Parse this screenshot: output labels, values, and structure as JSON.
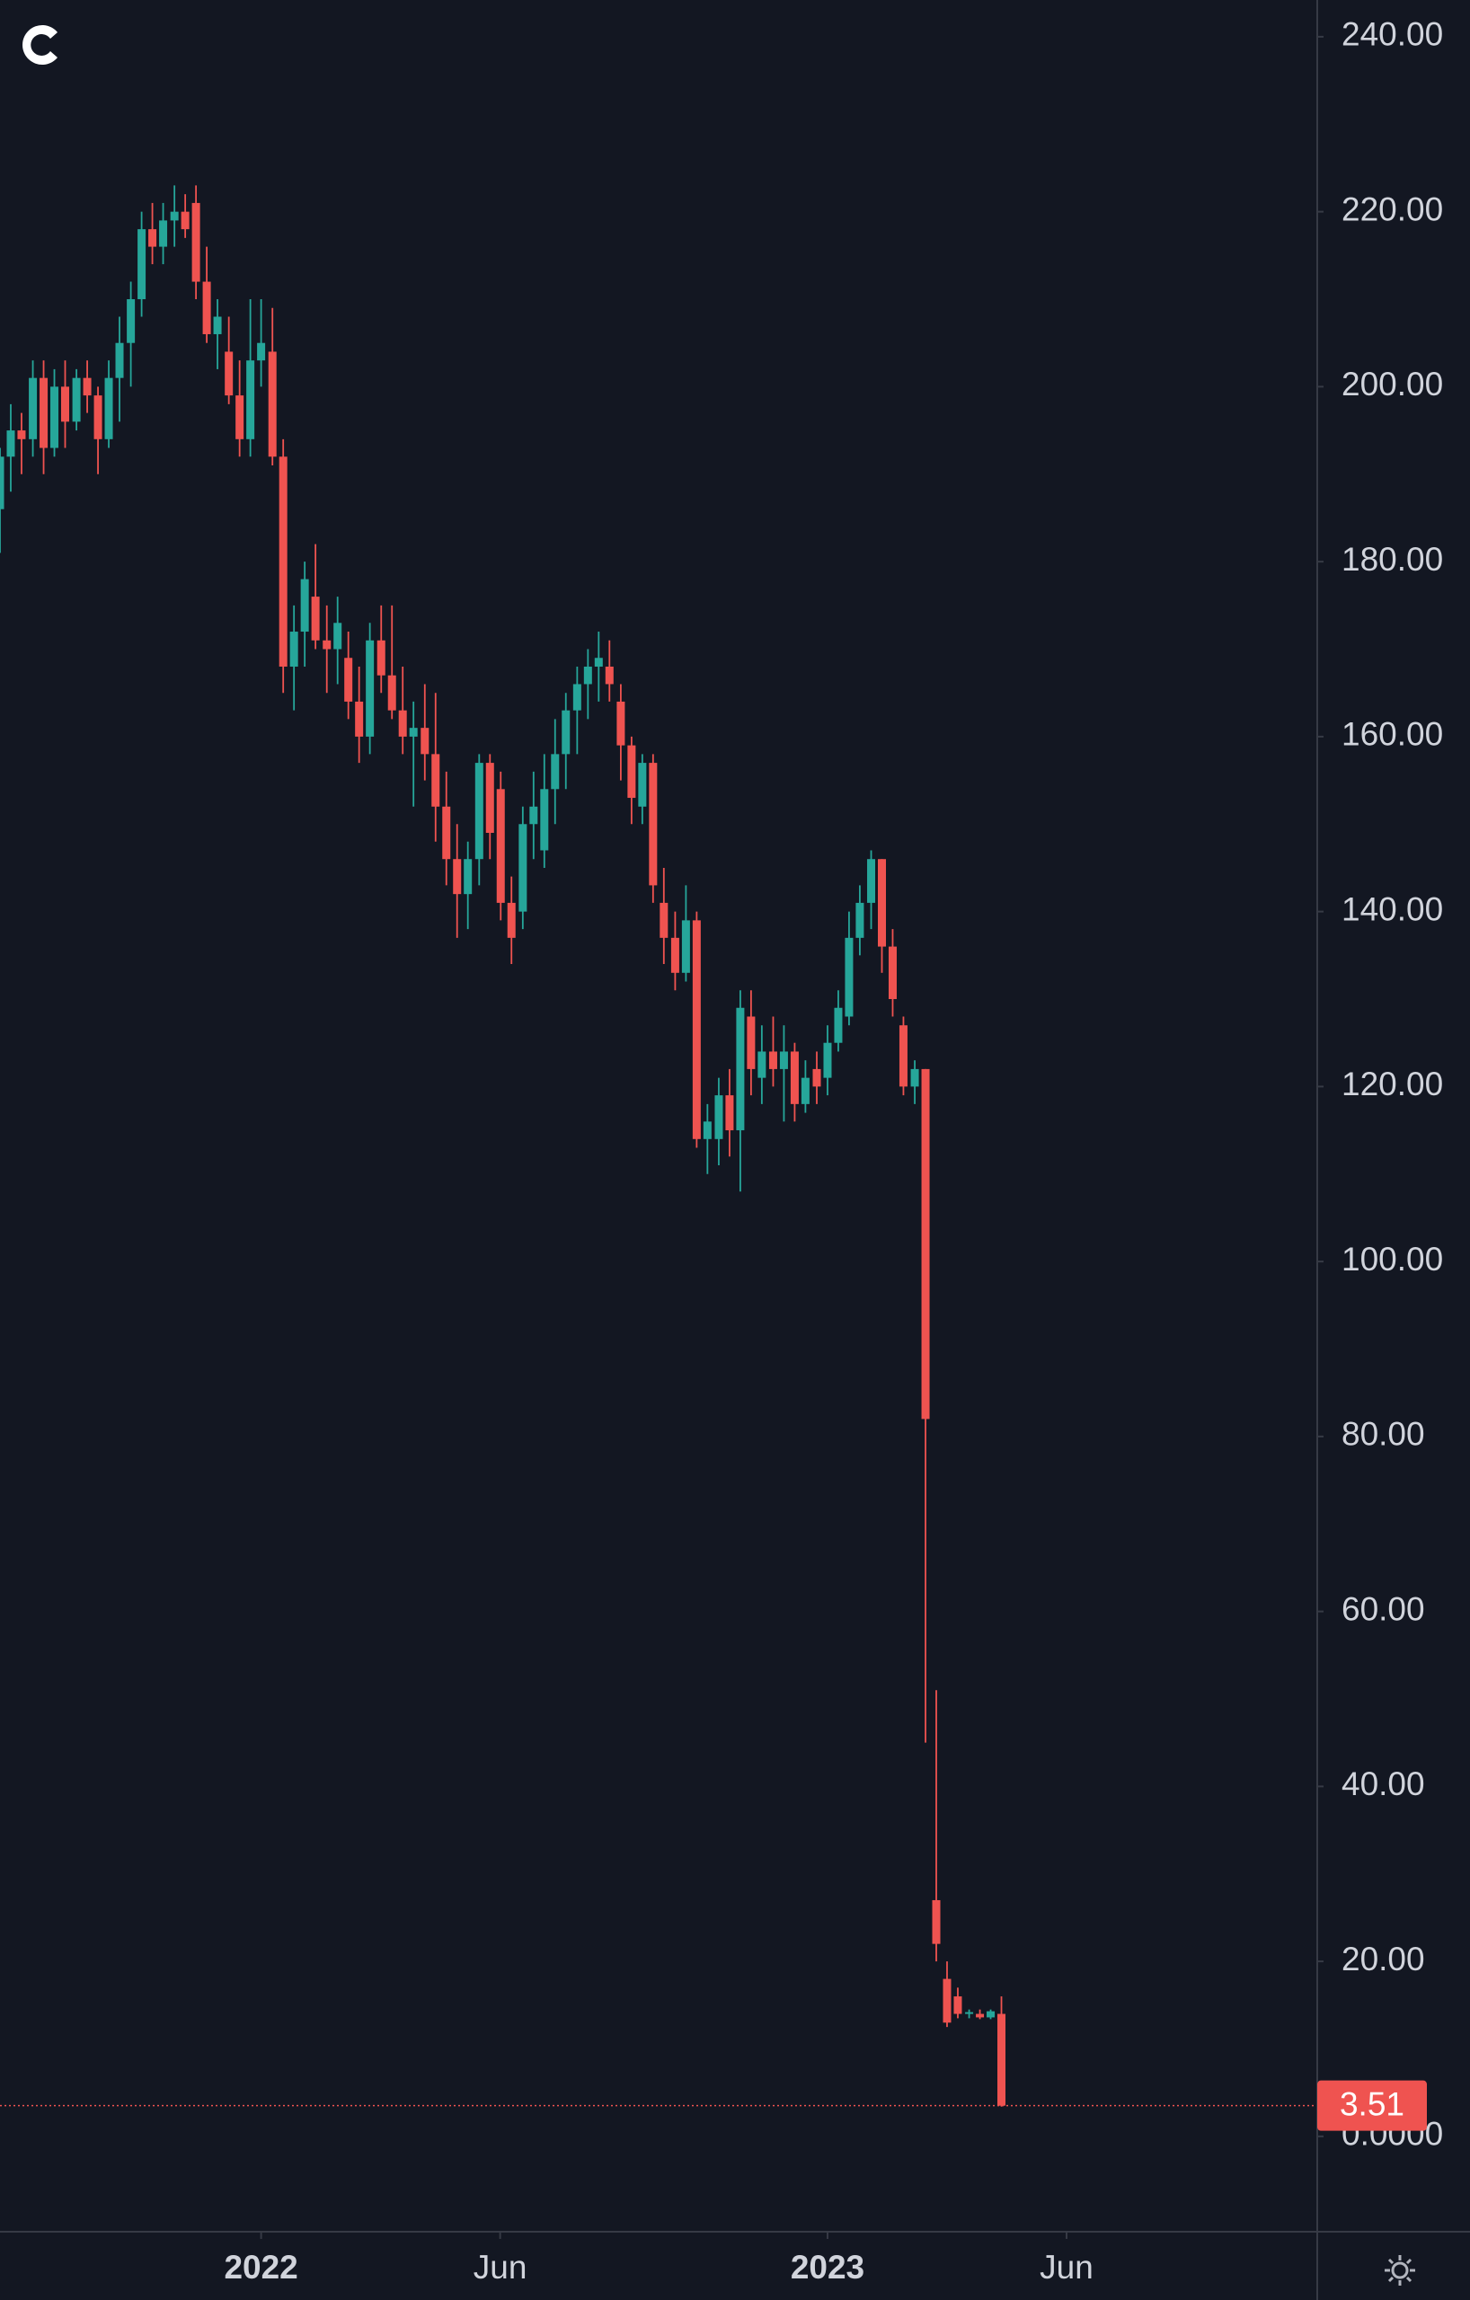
{
  "chart_data": {
    "type": "candlestick",
    "x": [
      2021.539,
      2021.558,
      2021.577,
      2021.597,
      2021.616,
      2021.635,
      2021.654,
      2021.674,
      2021.693,
      2021.712,
      2021.731,
      2021.75,
      2021.77,
      2021.789,
      2021.808,
      2021.827,
      2021.847,
      2021.866,
      2021.885,
      2021.904,
      2021.923,
      2021.943,
      2021.962,
      2021.981,
      2022.0,
      2022.02,
      2022.039,
      2022.058,
      2022.077,
      2022.096,
      2022.116,
      2022.135,
      2022.154,
      2022.173,
      2022.192,
      2022.212,
      2022.231,
      2022.25,
      2022.269,
      2022.289,
      2022.308,
      2022.327,
      2022.346,
      2022.365,
      2022.385,
      2022.404,
      2022.423,
      2022.442,
      2022.462,
      2022.481,
      2022.5,
      2022.519,
      2022.538,
      2022.558,
      2022.577,
      2022.596,
      2022.615,
      2022.635,
      2022.654,
      2022.673,
      2022.692,
      2022.711,
      2022.731,
      2022.75,
      2022.769,
      2022.788,
      2022.808,
      2022.827,
      2022.846,
      2022.865,
      2022.884,
      2022.904,
      2022.923,
      2022.942,
      2022.961,
      2022.981,
      2023.0,
      2023.019,
      2023.038,
      2023.057,
      2023.077,
      2023.096,
      2023.115,
      2023.134,
      2023.154,
      2023.173,
      2023.192,
      2023.211,
      2023.23,
      2023.25,
      2023.269,
      2023.288,
      2023.307
    ],
    "open": [
      186,
      192,
      195,
      194,
      201,
      193,
      200,
      196,
      201,
      199,
      194,
      201,
      205,
      210,
      218,
      216,
      219,
      220,
      221,
      212,
      206,
      204,
      199,
      194,
      203,
      204,
      192,
      168,
      172,
      176,
      171,
      170,
      169,
      164,
      160,
      171,
      167,
      163,
      160,
      161,
      158,
      152,
      146,
      142,
      146,
      157,
      154,
      141,
      140,
      150,
      147,
      154,
      158,
      163,
      166,
      168,
      168,
      164,
      159,
      152,
      157,
      141,
      137,
      133,
      139,
      114,
      114,
      119,
      115,
      128,
      121,
      124,
      122,
      124,
      118,
      122,
      121,
      125,
      128,
      137,
      141,
      146,
      136,
      127,
      120,
      122,
      27,
      18,
      16,
      14,
      14,
      13.6,
      14
    ],
    "high": [
      193,
      198,
      197,
      203,
      203,
      202,
      203,
      202,
      203,
      200,
      203,
      208,
      212,
      220,
      221,
      221,
      223,
      222,
      223,
      216,
      210,
      208,
      203,
      210,
      210,
      209,
      194,
      175,
      180,
      182,
      175,
      176,
      172,
      168,
      173,
      175,
      175,
      168,
      164,
      166,
      165,
      156,
      150,
      148,
      158,
      158,
      156,
      144,
      152,
      156,
      158,
      162,
      165,
      168,
      170,
      172,
      171,
      166,
      160,
      158,
      158,
      145,
      140,
      143,
      140,
      118,
      121,
      122,
      131,
      131,
      127,
      128,
      127,
      125,
      123,
      124,
      127,
      131,
      140,
      143,
      147,
      146,
      138,
      128,
      123,
      122,
      51,
      20,
      17,
      14.5,
      14.5,
      14.5,
      16
    ],
    "low": [
      181,
      188,
      190,
      192,
      190,
      192,
      193,
      195,
      197,
      190,
      193,
      196,
      200,
      208,
      214,
      214,
      216,
      217,
      210,
      205,
      202,
      198,
      192,
      192,
      200,
      191,
      165,
      163,
      168,
      170,
      165,
      166,
      162,
      157,
      158,
      165,
      162,
      158,
      152,
      155,
      148,
      143,
      137,
      138,
      143,
      146,
      139,
      134,
      138,
      146,
      145,
      150,
      154,
      158,
      162,
      164,
      164,
      155,
      150,
      150,
      141,
      134,
      131,
      132,
      113,
      110,
      111,
      112,
      108,
      119,
      118,
      120,
      116,
      116,
      117,
      118,
      119,
      124,
      127,
      135,
      138,
      133,
      128,
      119,
      118,
      45,
      20,
      12.5,
      13.5,
      13.5,
      13.4,
      13.4,
      3.4
    ],
    "close": [
      192,
      195,
      194,
      201,
      193,
      200,
      196,
      201,
      199,
      194,
      201,
      205,
      210,
      218,
      216,
      219,
      220,
      218,
      212,
      206,
      208,
      199,
      194,
      203,
      205,
      192,
      168,
      172,
      178,
      171,
      170,
      173,
      164,
      160,
      171,
      167,
      163,
      160,
      161,
      158,
      152,
      146,
      142,
      146,
      157,
      149,
      141,
      137,
      150,
      152,
      154,
      158,
      163,
      166,
      168,
      169,
      166,
      159,
      153,
      157,
      143,
      137,
      133,
      139,
      114,
      116,
      119,
      115,
      129,
      122,
      124,
      122,
      124,
      118,
      121,
      120,
      125,
      129,
      137,
      141,
      146,
      136,
      130,
      120,
      122,
      82,
      22,
      13,
      14,
      14.2,
      13.6,
      14.3,
      3.51
    ],
    "up_color": "#26a69a",
    "down_color": "#ef5350",
    "xlim": [
      2021.539,
      2023.863
    ],
    "ylim": [
      -10.9,
      244.2
    ],
    "xticks": [
      2022,
      {
        "value": 2022.422,
        "label": "Jun"
      },
      2023,
      {
        "value": 2023.422,
        "label": "Jun"
      }
    ],
    "yticks": [
      {
        "value": 0,
        "label": "0.0000"
      },
      {
        "value": 20,
        "label": "20.00"
      },
      {
        "value": 40,
        "label": "40.00"
      },
      {
        "value": 60,
        "label": "60.00"
      },
      {
        "value": 80,
        "label": "80.00"
      },
      {
        "value": 100,
        "label": "100.00"
      },
      {
        "value": 120,
        "label": "120.00"
      },
      {
        "value": 140,
        "label": "140.00"
      },
      {
        "value": 160,
        "label": "160.00"
      },
      {
        "value": 180,
        "label": "180.00"
      },
      {
        "value": 200,
        "label": "200.00"
      },
      {
        "value": 220,
        "label": "220.00"
      },
      {
        "value": 240,
        "label": "240.00"
      }
    ]
  }
}
